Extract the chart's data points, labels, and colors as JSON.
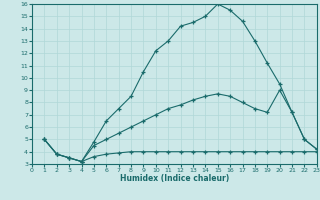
{
  "xlabel": "Humidex (Indice chaleur)",
  "bg_color": "#cce8e8",
  "line_color": "#1a6b6b",
  "grid_color": "#b0d8d8",
  "xlim": [
    0,
    23
  ],
  "ylim": [
    3,
    16
  ],
  "xticks": [
    0,
    1,
    2,
    3,
    4,
    5,
    6,
    7,
    8,
    9,
    10,
    11,
    12,
    13,
    14,
    15,
    16,
    17,
    18,
    19,
    20,
    21,
    22,
    23
  ],
  "yticks": [
    3,
    4,
    5,
    6,
    7,
    8,
    9,
    10,
    11,
    12,
    13,
    14,
    15,
    16
  ],
  "curve1_x": [
    1,
    2,
    3,
    4,
    5,
    6,
    7,
    8,
    9,
    10,
    11,
    12,
    13,
    14,
    15,
    16,
    17,
    18,
    19,
    20,
    21,
    22,
    23
  ],
  "curve1_y": [
    5.0,
    3.8,
    3.5,
    3.2,
    4.8,
    6.5,
    7.5,
    8.5,
    10.5,
    12.2,
    13.0,
    14.2,
    14.5,
    15.0,
    16.0,
    15.5,
    14.6,
    13.0,
    11.2,
    9.5,
    7.2,
    5.0,
    4.2
  ],
  "curve2_x": [
    1,
    2,
    3,
    4,
    5,
    6,
    7,
    8,
    9,
    10,
    11,
    12,
    13,
    14,
    15,
    16,
    17,
    18,
    19,
    20,
    21,
    22,
    23
  ],
  "curve2_y": [
    5.0,
    3.8,
    3.5,
    3.2,
    4.5,
    5.0,
    5.5,
    6.0,
    6.5,
    7.0,
    7.5,
    7.8,
    8.2,
    8.5,
    8.7,
    8.5,
    8.0,
    7.5,
    7.2,
    9.0,
    7.2,
    5.0,
    4.2
  ],
  "curve3_x": [
    1,
    2,
    3,
    4,
    5,
    6,
    7,
    8,
    9,
    10,
    11,
    12,
    13,
    14,
    15,
    16,
    17,
    18,
    19,
    20,
    21,
    22,
    23
  ],
  "curve3_y": [
    5.0,
    3.8,
    3.5,
    3.2,
    3.6,
    3.8,
    3.9,
    4.0,
    4.0,
    4.0,
    4.0,
    4.0,
    4.0,
    4.0,
    4.0,
    4.0,
    4.0,
    4.0,
    4.0,
    4.0,
    4.0,
    4.0,
    4.0
  ]
}
